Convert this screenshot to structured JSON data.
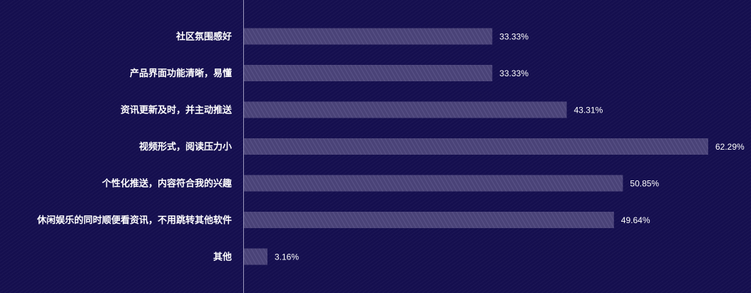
{
  "chart_data": {
    "type": "bar",
    "orientation": "horizontal",
    "categories": [
      "社区氛围感好",
      "产品界面功能清晰，易懂",
      "资讯更新及时，并主动推送",
      "视频形式，阅读压力小",
      "个性化推送，内容符合我的兴趣",
      "休闲娱乐的同时顺便看资讯，不用跳转其他软件",
      "其他"
    ],
    "values": [
      33.33,
      33.33,
      43.31,
      62.29,
      50.85,
      49.64,
      3.16
    ],
    "value_labels": [
      "33.33%",
      "33.33%",
      "43.31%",
      "62.29%",
      "50.85%",
      "49.64%",
      "3.16%"
    ],
    "xlim": [
      0,
      62.29
    ],
    "grid": false,
    "legend": "none",
    "colors": {
      "background": "#150f4f",
      "bar": "#4a4378",
      "bar_stripe": "#5a5388",
      "axis": "#9c98bd",
      "text": "#ffffff"
    }
  }
}
